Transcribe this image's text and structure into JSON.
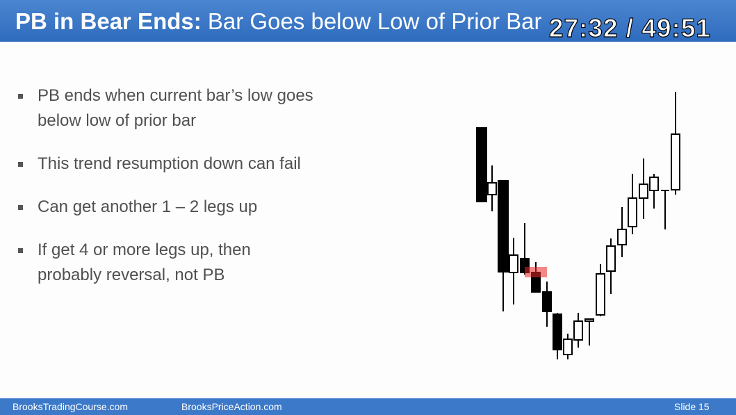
{
  "header": {
    "title_bold": "PB in Bear Ends:",
    "title_rest": "Bar Goes below Low of Prior Bar",
    "timer": "27:32 / 49:51"
  },
  "bullets": [
    "PB ends when current bar’s low goes below low of prior bar",
    "This trend resumption down can fail",
    "Can get another 1 – 2 legs up",
    "If get 4 or more legs up, then probably reversal, not PB"
  ],
  "footer": {
    "left": "BrooksTradingCourse.com",
    "center": "BrooksPriceAction.com",
    "slide": "Slide  15"
  }
}
